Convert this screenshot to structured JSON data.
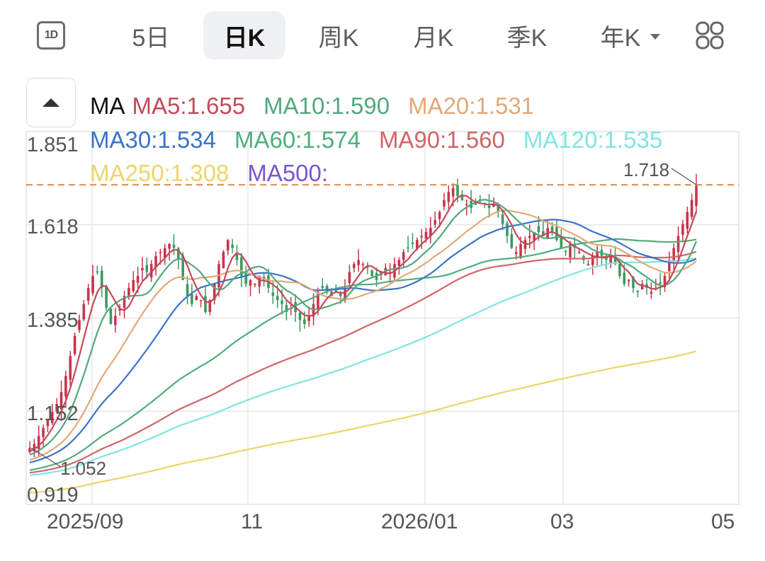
{
  "tabs": {
    "icon_1d": "1D",
    "items": [
      {
        "label": "5日",
        "active": false
      },
      {
        "label": "日K",
        "active": true
      },
      {
        "label": "周K",
        "active": false
      },
      {
        "label": "月K",
        "active": false
      },
      {
        "label": "季K",
        "active": false
      },
      {
        "label": "年K",
        "active": false,
        "has_dropdown": true
      }
    ],
    "grid_icon": "grid-icon"
  },
  "legend": {
    "prefix": "MA",
    "items": [
      {
        "label": "MA5:1.655",
        "color": "#c24a5b"
      },
      {
        "label": "MA10:1.590",
        "color": "#52a87f"
      },
      {
        "label": "MA20:1.531",
        "color": "#e3a878"
      },
      {
        "label": "MA30:1.534",
        "color": "#3a74c7"
      },
      {
        "label": "MA60:1.574",
        "color": "#4fae7c"
      },
      {
        "label": "MA90:1.560",
        "color": "#d06566"
      },
      {
        "label": "MA120:1.535",
        "color": "#7fe5e3"
      },
      {
        "label": "MA250:1.308",
        "color": "#ecd56b"
      },
      {
        "label": "MA500:",
        "color": "#7b55cf"
      }
    ]
  },
  "chart_data": {
    "type": "candlestick",
    "title": "日K",
    "xlabel": "",
    "ylabel": "",
    "y_ticks": [
      "1.851",
      "1.618",
      "1.385",
      "1.152",
      "0.919"
    ],
    "ylim": [
      0.919,
      1.851
    ],
    "x_ticks": [
      "2025/09",
      "11",
      "2026/01",
      "03",
      "05"
    ],
    "grid": true,
    "annotations": {
      "max_label": "1.718",
      "min_label": "1.052",
      "dashed_line_value": 1.718
    },
    "up_color": "#c8344b",
    "down_color": "#3a9a62",
    "moving_averages": {
      "MA5": 1.655,
      "MA10": 1.59,
      "MA20": 1.531,
      "MA30": 1.534,
      "MA60": 1.574,
      "MA90": 1.56,
      "MA120": 1.535,
      "MA250": 1.308,
      "MA500": null
    },
    "closes": [
      1.06,
      1.07,
      1.09,
      1.11,
      1.13,
      1.15,
      1.17,
      1.2,
      1.24,
      1.29,
      1.34,
      1.38,
      1.42,
      1.46,
      1.49,
      1.5,
      1.46,
      1.41,
      1.37,
      1.39,
      1.41,
      1.44,
      1.46,
      1.48,
      1.49,
      1.51,
      1.5,
      1.52,
      1.54,
      1.55,
      1.56,
      1.57,
      1.56,
      1.53,
      1.48,
      1.44,
      1.42,
      1.44,
      1.43,
      1.4,
      1.43,
      1.47,
      1.52,
      1.55,
      1.58,
      1.56,
      1.53,
      1.49,
      1.47,
      1.48,
      1.47,
      1.49,
      1.48,
      1.46,
      1.44,
      1.43,
      1.42,
      1.4,
      1.41,
      1.4,
      1.38,
      1.37,
      1.39,
      1.42,
      1.45,
      1.46,
      1.45,
      1.44,
      1.45,
      1.44,
      1.46,
      1.5,
      1.52,
      1.53,
      1.52,
      1.51,
      1.49,
      1.48,
      1.5,
      1.51,
      1.5,
      1.52,
      1.53,
      1.55,
      1.56,
      1.57,
      1.58,
      1.59,
      1.6,
      1.61,
      1.63,
      1.65,
      1.68,
      1.7,
      1.71,
      1.69,
      1.68,
      1.67,
      1.66,
      1.67,
      1.68,
      1.67,
      1.66,
      1.67,
      1.65,
      1.62,
      1.59,
      1.56,
      1.55,
      1.57,
      1.58,
      1.59,
      1.6,
      1.6,
      1.59,
      1.61,
      1.6,
      1.58,
      1.56,
      1.55,
      1.57,
      1.56,
      1.55,
      1.53,
      1.52,
      1.54,
      1.55,
      1.54,
      1.53,
      1.54,
      1.52,
      1.49,
      1.47,
      1.48,
      1.46,
      1.45,
      1.47,
      1.46,
      1.45,
      1.46,
      1.47,
      1.49,
      1.53,
      1.56,
      1.59,
      1.62,
      1.65,
      1.68,
      1.716
    ]
  }
}
